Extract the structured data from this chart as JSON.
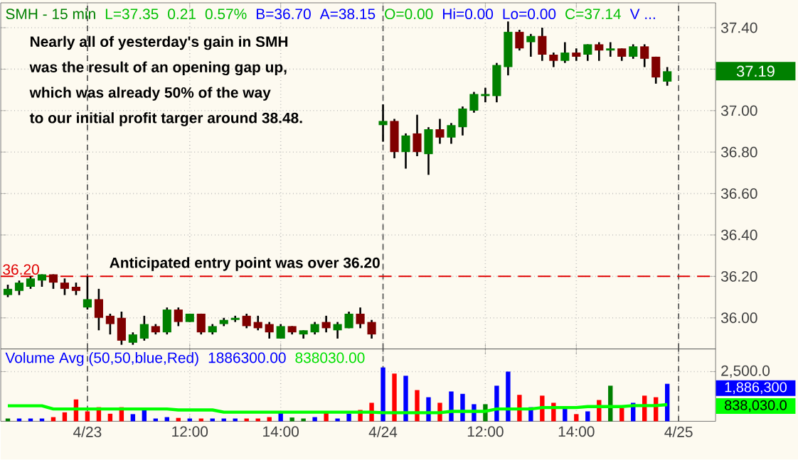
{
  "chart_data": [
    {
      "type": "candlestick",
      "title": "SMH - 15 min",
      "categories": [
        null,
        null,
        null,
        null,
        null,
        null,
        null,
        "4/23",
        null,
        null,
        null,
        null,
        null,
        null,
        null,
        null,
        "12:00",
        null,
        null,
        null,
        null,
        null,
        null,
        null,
        "14:00",
        null,
        null,
        null,
        null,
        null,
        null,
        null,
        null,
        "4/24",
        null,
        null,
        null,
        null,
        null,
        null,
        null,
        null,
        "12:00",
        null,
        null,
        null,
        null,
        null,
        null,
        null,
        "14:00",
        null,
        null,
        null,
        null,
        null,
        null,
        null,
        null,
        "4/25"
      ],
      "ohlc": [
        [
          36.11,
          36.16,
          36.1,
          36.14
        ],
        [
          36.13,
          36.18,
          36.11,
          36.17
        ],
        [
          36.15,
          36.2,
          36.14,
          36.19
        ],
        [
          36.18,
          36.21,
          36.15,
          36.21
        ],
        [
          36.21,
          36.21,
          36.14,
          36.17
        ],
        [
          36.17,
          36.19,
          36.11,
          36.14
        ],
        [
          36.15,
          36.17,
          36.11,
          36.13
        ],
        [
          36.05,
          36.2,
          36.04,
          36.09
        ],
        [
          36.09,
          36.14,
          35.94,
          36.0
        ],
        [
          36.01,
          36.02,
          35.92,
          35.97
        ],
        [
          36.0,
          36.03,
          35.87,
          35.89
        ],
        [
          35.88,
          35.93,
          35.87,
          35.92
        ],
        [
          35.9,
          36.01,
          35.89,
          35.97
        ],
        [
          35.96,
          35.97,
          35.92,
          35.93
        ],
        [
          35.93,
          36.05,
          35.92,
          36.04
        ],
        [
          36.04,
          36.05,
          35.96,
          35.98
        ],
        [
          35.98,
          36.02,
          35.98,
          36.02
        ],
        [
          36.02,
          36.02,
          35.92,
          35.93
        ],
        [
          35.93,
          35.97,
          35.92,
          35.96
        ],
        [
          35.97,
          36.0,
          35.96,
          35.99
        ],
        [
          35.99,
          36.01,
          35.98,
          36.0
        ],
        [
          36.01,
          36.02,
          35.95,
          35.96
        ],
        [
          35.98,
          36.01,
          35.94,
          35.95
        ],
        [
          35.97,
          35.98,
          35.9,
          35.93
        ],
        [
          35.9,
          35.97,
          35.9,
          35.96
        ],
        [
          35.96,
          35.96,
          35.92,
          35.93
        ],
        [
          35.92,
          35.94,
          35.9,
          35.94
        ],
        [
          35.93,
          35.98,
          35.92,
          35.97
        ],
        [
          35.98,
          36.01,
          35.93,
          35.95
        ],
        [
          35.94,
          35.98,
          35.9,
          35.97
        ],
        [
          35.95,
          36.03,
          35.95,
          36.02
        ],
        [
          36.02,
          36.05,
          35.95,
          35.97
        ],
        [
          35.98,
          35.99,
          35.9,
          35.92
        ],
        [
          36.93,
          37.03,
          36.85,
          36.95
        ],
        [
          36.95,
          36.96,
          36.77,
          36.8
        ],
        [
          36.8,
          36.89,
          36.72,
          36.88
        ],
        [
          36.89,
          36.98,
          36.78,
          36.8
        ],
        [
          36.79,
          36.92,
          36.69,
          36.91
        ],
        [
          36.91,
          36.96,
          36.84,
          36.87
        ],
        [
          36.87,
          36.94,
          36.84,
          36.93
        ],
        [
          36.92,
          37.02,
          36.88,
          37.01
        ],
        [
          37.0,
          37.09,
          36.99,
          37.08
        ],
        [
          37.07,
          37.11,
          37.04,
          37.08
        ],
        [
          37.07,
          37.23,
          37.04,
          37.22
        ],
        [
          37.21,
          37.43,
          37.17,
          37.38
        ],
        [
          37.38,
          37.39,
          37.29,
          37.3
        ],
        [
          37.33,
          37.37,
          37.26,
          37.36
        ],
        [
          37.36,
          37.4,
          37.24,
          37.27
        ],
        [
          37.27,
          37.28,
          37.21,
          37.24
        ],
        [
          37.24,
          37.33,
          37.23,
          37.28
        ],
        [
          37.28,
          37.3,
          37.24,
          37.26
        ],
        [
          37.27,
          37.32,
          37.24,
          37.32
        ],
        [
          37.32,
          37.33,
          37.24,
          37.29
        ],
        [
          37.29,
          37.33,
          37.26,
          37.3
        ],
        [
          37.3,
          37.3,
          37.24,
          37.26
        ],
        [
          37.26,
          37.32,
          37.25,
          37.31
        ],
        [
          37.31,
          37.32,
          37.21,
          37.25
        ],
        [
          37.26,
          37.26,
          37.13,
          37.16
        ],
        [
          37.14,
          37.21,
          37.12,
          37.19
        ],
        null
      ],
      "ylim": [
        35.85,
        37.52
      ],
      "yticks": [
        {
          "value": 36.0,
          "label": "36.00"
        },
        {
          "value": 36.2,
          "label": "36.20"
        },
        {
          "value": 36.4,
          "label": "36.40"
        },
        {
          "value": 36.6,
          "label": "36.60"
        },
        {
          "value": 36.8,
          "label": "36.80"
        },
        {
          "value": 37.0,
          "label": "37.00"
        },
        {
          "value": 37.2,
          "label": null
        },
        {
          "value": 37.4,
          "label": "37.40"
        }
      ],
      "grid": true,
      "ref_lines": [
        {
          "axis": "y",
          "value": 36.2,
          "label": "36.20",
          "color": "#e00000",
          "line_style": "dashed"
        }
      ],
      "annotations": [
        "L=37.35",
        "0.21",
        "0.57%",
        "B=36.70",
        "A=38.15",
        "O=0.00",
        "Hi=0.00",
        "Lo=0.00",
        "C=37.14",
        "V ...",
        "Nearly all of yesterday's gain in SMH",
        "was the result of an opening gap up,",
        "which was already 50% of the way",
        "to our initial profit targer around 38.48.",
        "Anticipated entry point was over 36.20",
        "37.19"
      ]
    },
    {
      "type": "bar",
      "title": "Volume Avg (50,50,blue,Red)",
      "categories": [
        null,
        null,
        null,
        null,
        null,
        null,
        null,
        null,
        null,
        null,
        null,
        null,
        null,
        null,
        null,
        null,
        null,
        null,
        null,
        null,
        null,
        null,
        null,
        null,
        null,
        null,
        null,
        null,
        null,
        null,
        null,
        null,
        null,
        null,
        null,
        null,
        null,
        null,
        null,
        null,
        null,
        null,
        null,
        null,
        null,
        null,
        null,
        null,
        null,
        null,
        null,
        null,
        null,
        null,
        null,
        null,
        null,
        null,
        null,
        null
      ],
      "series": [
        {
          "values": [
            140,
            140,
            140,
            140,
            210,
            450,
            1100,
            500,
            710,
            380,
            710,
            360,
            570,
            140,
            210,
            170,
            140,
            140,
            140,
            140,
            140,
            140,
            140,
            210,
            500,
            190,
            140,
            210,
            500,
            140,
            380,
            570,
            930,
            2710,
            2400,
            2290,
            1570,
            1210,
            930,
            1500,
            1380,
            860,
            860,
            1790,
            2500,
            1330,
            710,
            1290,
            930,
            670,
            360,
            500,
            1070,
            1790,
            670,
            930,
            1290,
            1210,
            1886,
            null
          ],
          "colors": [
            "#008000",
            "#0000ff",
            "#0000ff",
            "#0000ff",
            "#ff0000",
            "#ff0000",
            "#ff0000",
            "#ff0000",
            "#ff0000",
            "#ff0000",
            "#ff0000",
            "#0000ff",
            "#0000ff",
            "#0000ff",
            "#0000ff",
            "#ff0000",
            "#0000ff",
            "#ff0000",
            "#0000ff",
            "#0000ff",
            "#0000ff",
            "#ff0000",
            "#ff0000",
            "#ff0000",
            "#0000ff",
            "#008000",
            "#008000",
            "#0000ff",
            "#ff0000",
            "#0000ff",
            "#0000ff",
            "#ff0000",
            "#ff0000",
            "#0000ff",
            "#ff0000",
            "#0000ff",
            "#ff0000",
            "#0000ff",
            "#ff0000",
            "#0000ff",
            "#0000ff",
            "#0000ff",
            "#008000",
            "#0000ff",
            "#0000ff",
            "#ff0000",
            "#0000ff",
            "#ff0000",
            "#ff0000",
            "#0000ff",
            "#ff0000",
            "#0000ff",
            "#ff0000",
            "#008000",
            "#ff0000",
            "#0000ff",
            "#ff0000",
            "#ff0000",
            "#0000ff",
            "#0000ff"
          ]
        },
        {
          "type": "line",
          "color": "#00ff00",
          "values": [
            780,
            780,
            780,
            780,
            620,
            620,
            620,
            620,
            620,
            620,
            620,
            620,
            620,
            620,
            620,
            570,
            570,
            570,
            570,
            460,
            460,
            460,
            460,
            460,
            460,
            460,
            460,
            460,
            460,
            460,
            460,
            460,
            460,
            430,
            430,
            430,
            430,
            430,
            430,
            500,
            500,
            500,
            500,
            620,
            620,
            620,
            620,
            690,
            690,
            690,
            690,
            740,
            740,
            740,
            740,
            790,
            790,
            790,
            838,
            null
          ]
        }
      ],
      "ylim": [
        0,
        3640
      ],
      "tick_labels": "y",
      "yticks": [
        {
          "value": 2500,
          "label": "2,500.0"
        }
      ],
      "grid": true,
      "annotations": [
        "1886300.00",
        "838030.00",
        "1,886,300",
        "838,030.0"
      ]
    }
  ]
}
